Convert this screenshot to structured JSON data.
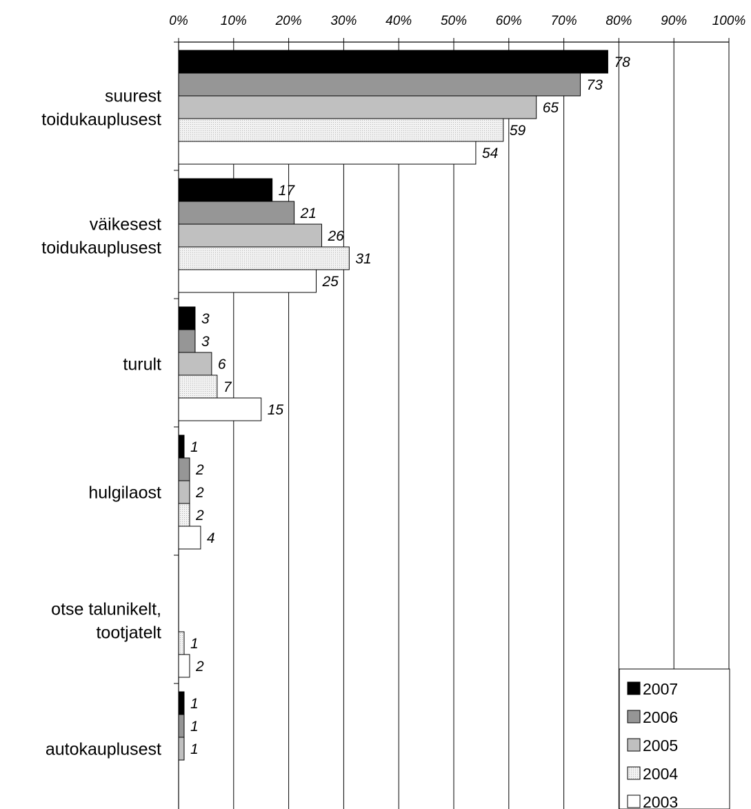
{
  "chart_data": {
    "type": "bar",
    "orientation": "horizontal",
    "x_axis_position": "top",
    "xlim": [
      0,
      100
    ],
    "x_ticks": [
      "0%",
      "10%",
      "20%",
      "30%",
      "40%",
      "50%",
      "60%",
      "70%",
      "80%",
      "90%",
      "100%"
    ],
    "grid": true,
    "legend_position": "bottom-right",
    "categories": [
      [
        "suurest",
        "toidukauplusest"
      ],
      [
        "väikesest",
        "toidukauplusest"
      ],
      [
        "turult"
      ],
      [
        "hulgilaost"
      ],
      [
        "otse talunikelt,",
        "tootjatelt"
      ],
      [
        "autokauplusest"
      ]
    ],
    "series": [
      {
        "name": "2007",
        "color": "#000000",
        "pattern": "solid",
        "values": [
          78,
          17,
          3,
          1,
          null,
          1
        ]
      },
      {
        "name": "2006",
        "color": "#969696",
        "pattern": "solid",
        "values": [
          73,
          21,
          3,
          2,
          null,
          1
        ]
      },
      {
        "name": "2005",
        "color": "#c0c0c0",
        "pattern": "solid",
        "values": [
          65,
          26,
          6,
          2,
          null,
          1
        ]
      },
      {
        "name": "2004",
        "color": "#e6e6e6",
        "pattern": "dotted",
        "values": [
          59,
          31,
          7,
          2,
          1,
          null
        ]
      },
      {
        "name": "2003",
        "color": "#ffffff",
        "pattern": "solid",
        "values": [
          54,
          25,
          15,
          4,
          2,
          null
        ]
      }
    ]
  }
}
